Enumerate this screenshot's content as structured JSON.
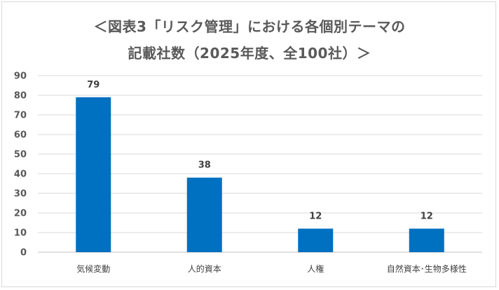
{
  "chart_data": {
    "type": "bar",
    "title_line1": "＜図表3「リスク管理」における各個別テーマの",
    "title_line2": "記載社数（2025年度、全100社）＞",
    "xlabel": "",
    "ylabel": "",
    "categories": [
      "気候変動",
      "人的資本",
      "人権",
      "自然資本･生物多様性"
    ],
    "values": [
      79,
      38,
      12,
      12
    ],
    "data_labels": [
      "79",
      "38",
      "12",
      "12"
    ],
    "ylim": [
      0,
      90
    ],
    "yticks": [
      "0",
      "10",
      "20",
      "30",
      "40",
      "50",
      "60",
      "70",
      "80",
      "90"
    ],
    "grid": true,
    "legend": "none",
    "bar_color": "#0070c0"
  }
}
